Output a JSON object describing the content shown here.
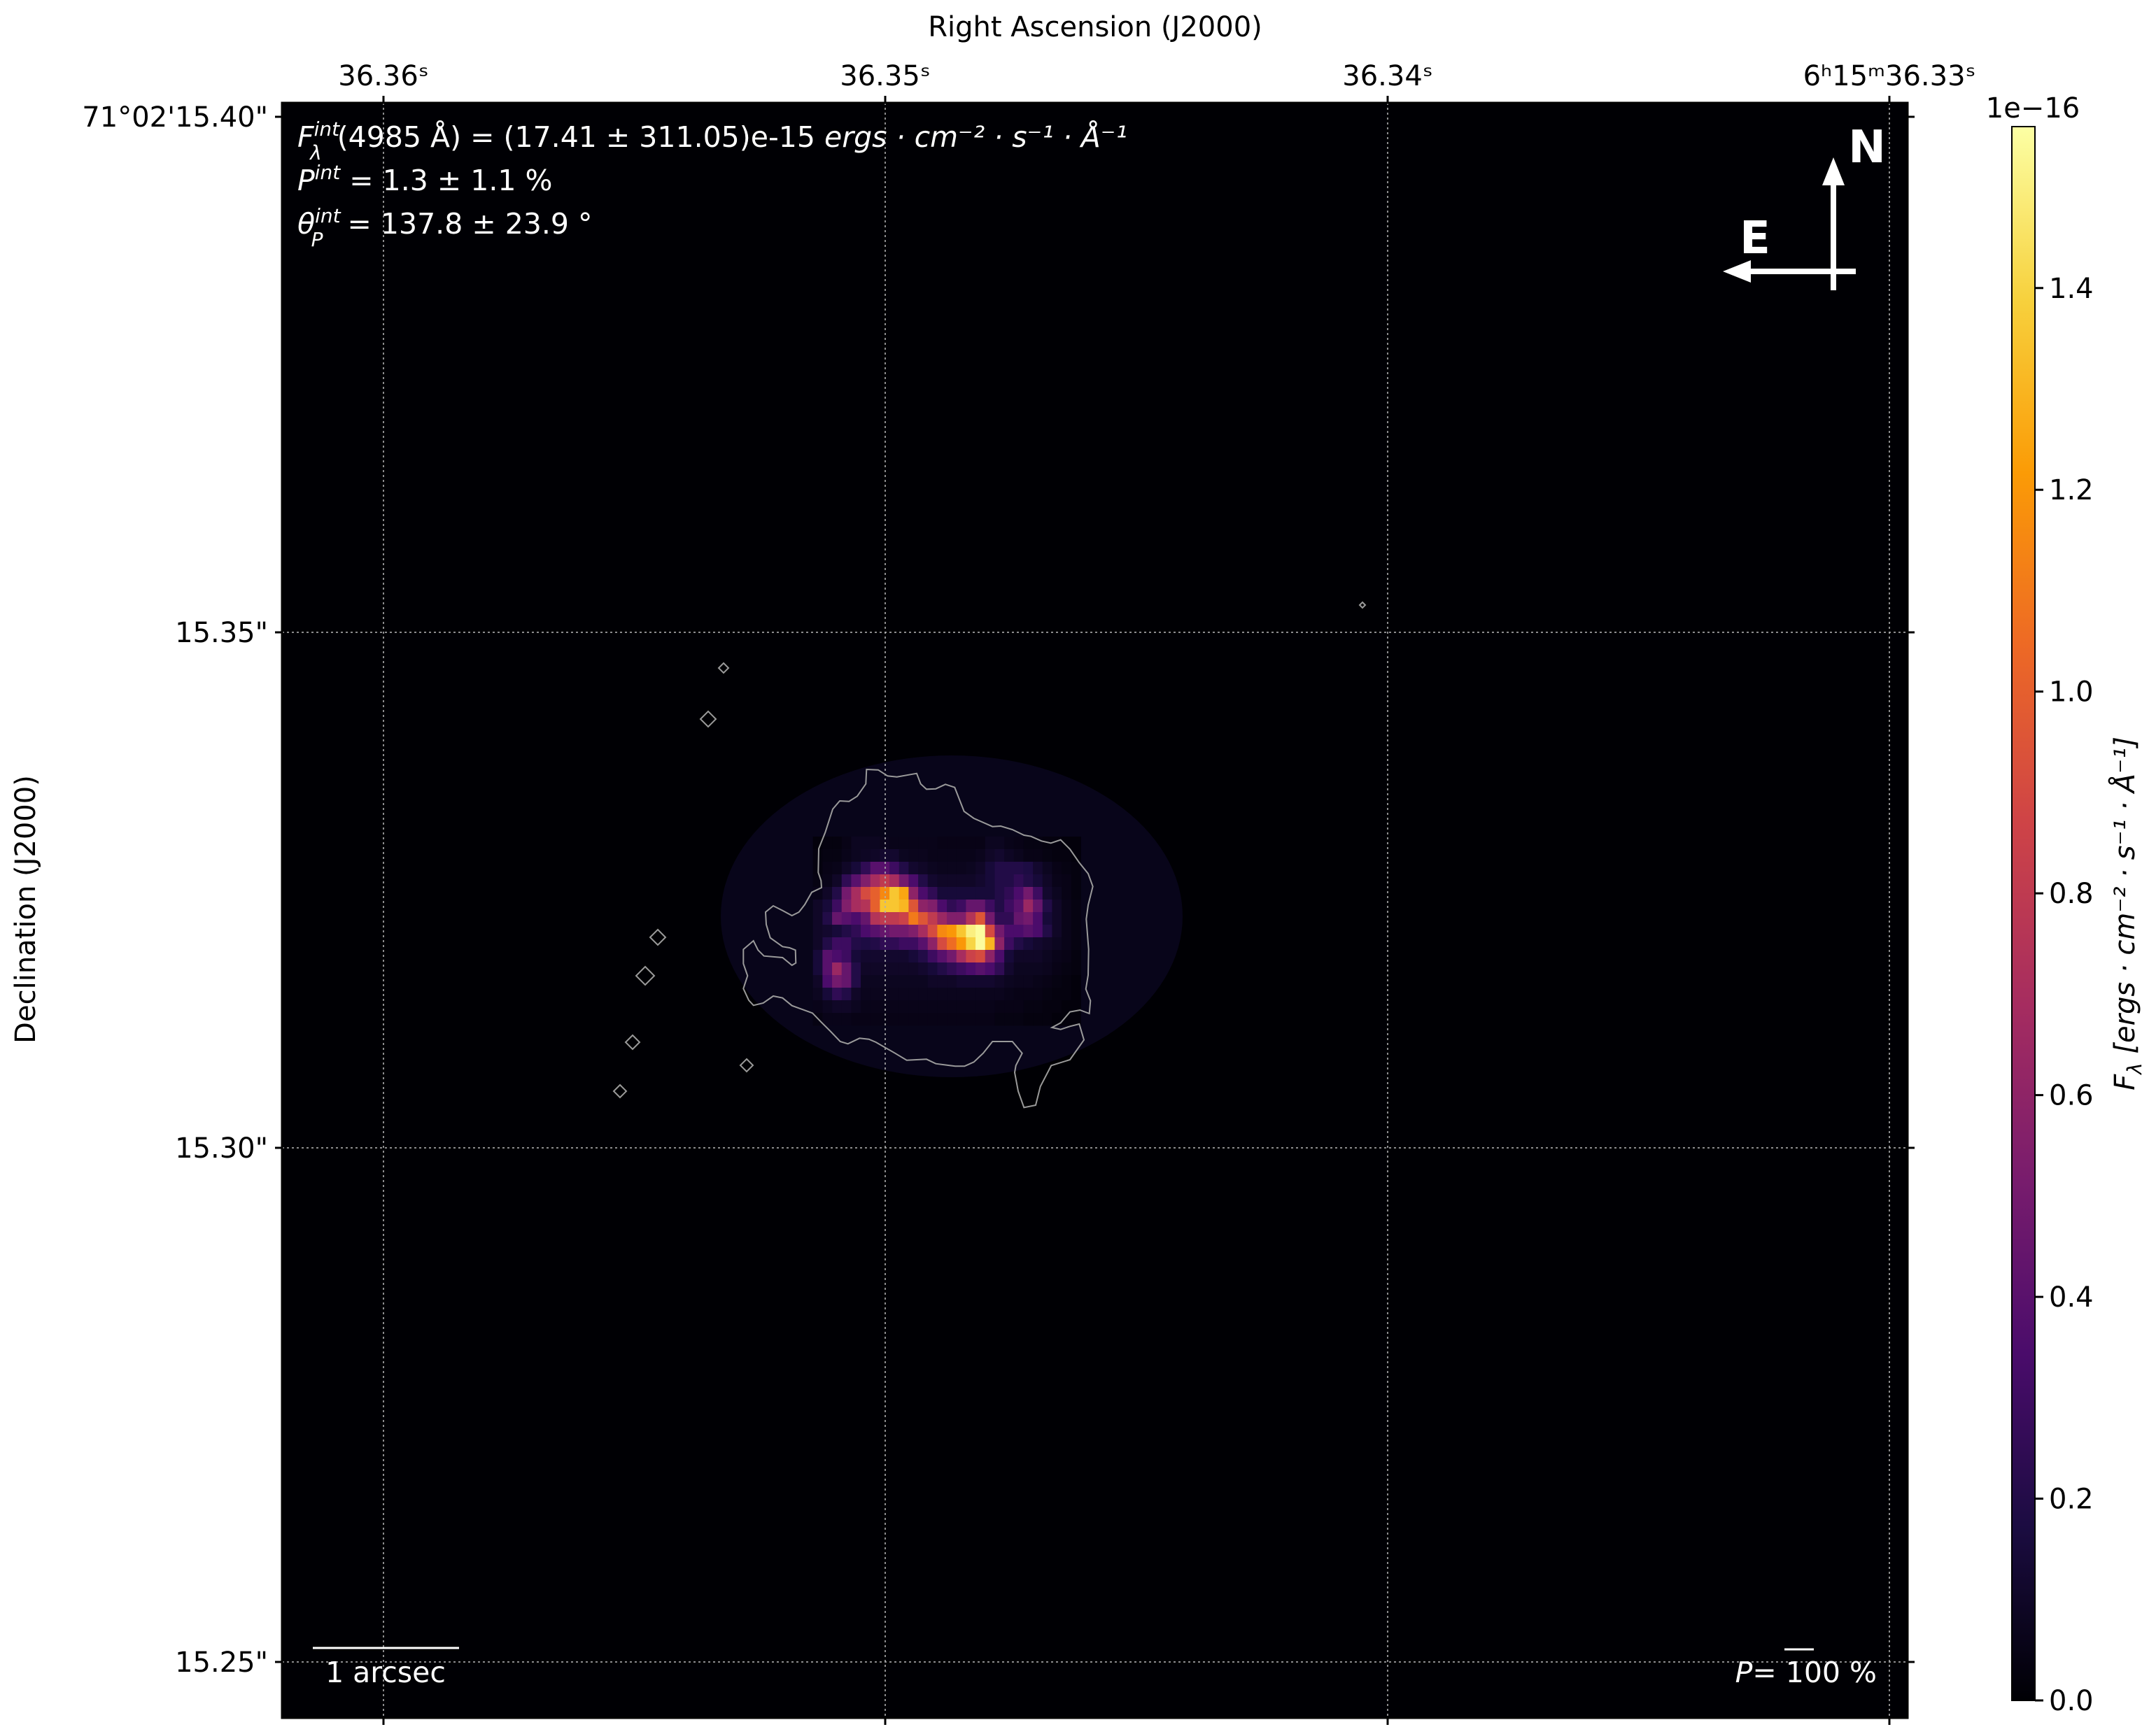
{
  "chart_data": {
    "type": "heatmap",
    "title": "",
    "xlabel": "Right Ascension (J2000)",
    "ylabel": "Declination (J2000)",
    "x_tick_labels": [
      "36.36ˢ",
      "36.35ˢ",
      "36.34ˢ",
      "6ʰ15ᵐ36.33ˢ"
    ],
    "y_tick_labels": [
      "71°02'15.40\"",
      "15.35\"",
      "15.30\"",
      "15.25\""
    ],
    "grid": true,
    "colormap": "inferno",
    "colorbar": {
      "label_main": "F",
      "label_sub": "λ",
      "label_units": " [ergs · cm⁻² · s⁻¹ · Å⁻¹]",
      "offset_text": "1e−16",
      "ticks": [
        "0.0",
        "0.2",
        "0.4",
        "0.6",
        "0.8",
        "1.0",
        "1.2",
        "1.4"
      ],
      "vmin": 0,
      "vmax": 1.56
    },
    "values": [
      [
        0.02,
        0.03,
        0.03,
        0.05,
        0.08,
        0.08,
        0.08,
        0.07,
        0.06,
        0.06,
        0.06,
        0.06,
        0.06,
        0.05,
        0.05,
        0.05,
        0.05,
        0.05,
        0.08,
        0.08,
        0.06,
        0.05,
        0.04,
        0.04,
        0.03,
        0.03,
        0.02,
        0.02
      ],
      [
        0.03,
        0.04,
        0.04,
        0.06,
        0.08,
        0.09,
        0.1,
        0.12,
        0.12,
        0.08,
        0.07,
        0.07,
        0.06,
        0.06,
        0.06,
        0.06,
        0.06,
        0.07,
        0.1,
        0.12,
        0.09,
        0.07,
        0.05,
        0.05,
        0.04,
        0.03,
        0.03,
        0.02
      ],
      [
        0.03,
        0.05,
        0.06,
        0.1,
        0.15,
        0.25,
        0.4,
        0.4,
        0.3,
        0.2,
        0.12,
        0.1,
        0.08,
        0.07,
        0.07,
        0.07,
        0.08,
        0.1,
        0.15,
        0.2,
        0.2,
        0.2,
        0.18,
        0.12,
        0.08,
        0.05,
        0.04,
        0.03
      ],
      [
        0.04,
        0.06,
        0.1,
        0.25,
        0.4,
        0.55,
        0.7,
        0.8,
        0.7,
        0.5,
        0.35,
        0.2,
        0.12,
        0.1,
        0.1,
        0.1,
        0.1,
        0.12,
        0.15,
        0.2,
        0.2,
        0.25,
        0.2,
        0.15,
        0.1,
        0.06,
        0.05,
        0.03
      ],
      [
        0.06,
        0.1,
        0.2,
        0.5,
        0.7,
        0.9,
        1.0,
        1.15,
        1.35,
        1.25,
        0.6,
        0.35,
        0.25,
        0.15,
        0.15,
        0.15,
        0.15,
        0.15,
        0.15,
        0.2,
        0.25,
        0.35,
        0.5,
        0.3,
        0.12,
        0.08,
        0.05,
        0.03
      ],
      [
        0.1,
        0.15,
        0.3,
        0.55,
        0.7,
        0.75,
        1.0,
        1.35,
        1.35,
        1.3,
        0.95,
        0.6,
        0.55,
        0.35,
        0.25,
        0.3,
        0.45,
        0.45,
        0.3,
        0.2,
        0.3,
        0.4,
        0.65,
        0.45,
        0.2,
        0.1,
        0.06,
        0.04
      ],
      [
        0.1,
        0.2,
        0.45,
        0.4,
        0.35,
        0.45,
        0.75,
        0.8,
        0.8,
        0.85,
        1.1,
        0.95,
        0.8,
        0.65,
        0.55,
        0.55,
        0.75,
        0.95,
        0.5,
        0.25,
        0.25,
        0.45,
        0.5,
        0.35,
        0.15,
        0.1,
        0.06,
        0.04
      ],
      [
        0.1,
        0.12,
        0.15,
        0.2,
        0.25,
        0.35,
        0.4,
        0.45,
        0.5,
        0.5,
        0.55,
        0.7,
        0.9,
        1.15,
        1.2,
        1.35,
        1.5,
        1.55,
        0.9,
        0.5,
        0.35,
        0.35,
        0.4,
        0.35,
        0.2,
        0.1,
        0.06,
        0.04
      ],
      [
        0.1,
        0.2,
        0.3,
        0.3,
        0.2,
        0.18,
        0.2,
        0.25,
        0.25,
        0.3,
        0.3,
        0.4,
        0.6,
        0.9,
        1.05,
        1.2,
        1.4,
        1.55,
        1.3,
        0.6,
        0.3,
        0.2,
        0.15,
        0.12,
        0.1,
        0.08,
        0.06,
        0.04
      ],
      [
        0.15,
        0.4,
        0.35,
        0.3,
        0.15,
        0.12,
        0.12,
        0.12,
        0.12,
        0.12,
        0.15,
        0.2,
        0.3,
        0.4,
        0.5,
        0.7,
        0.85,
        0.9,
        0.6,
        0.35,
        0.15,
        0.1,
        0.1,
        0.1,
        0.08,
        0.06,
        0.05,
        0.03
      ],
      [
        0.15,
        0.4,
        0.65,
        0.45,
        0.2,
        0.1,
        0.1,
        0.1,
        0.1,
        0.1,
        0.1,
        0.12,
        0.15,
        0.2,
        0.25,
        0.3,
        0.35,
        0.4,
        0.35,
        0.25,
        0.12,
        0.08,
        0.08,
        0.08,
        0.07,
        0.05,
        0.04,
        0.03
      ],
      [
        0.1,
        0.35,
        0.5,
        0.45,
        0.2,
        0.08,
        0.08,
        0.08,
        0.08,
        0.08,
        0.08,
        0.08,
        0.1,
        0.1,
        0.1,
        0.12,
        0.12,
        0.12,
        0.12,
        0.1,
        0.08,
        0.07,
        0.07,
        0.06,
        0.05,
        0.04,
        0.03,
        0.02
      ],
      [
        0.08,
        0.15,
        0.25,
        0.2,
        0.1,
        0.07,
        0.07,
        0.07,
        0.07,
        0.07,
        0.07,
        0.07,
        0.07,
        0.07,
        0.07,
        0.07,
        0.07,
        0.07,
        0.07,
        0.07,
        0.06,
        0.05,
        0.05,
        0.05,
        0.04,
        0.03,
        0.03,
        0.02
      ],
      [
        0.06,
        0.08,
        0.1,
        0.1,
        0.08,
        0.06,
        0.06,
        0.06,
        0.06,
        0.06,
        0.06,
        0.06,
        0.06,
        0.06,
        0.06,
        0.06,
        0.06,
        0.06,
        0.06,
        0.05,
        0.05,
        0.05,
        0.04,
        0.04,
        0.03,
        0.03,
        0.02,
        0.02
      ],
      [
        0.04,
        0.06,
        0.06,
        0.06,
        0.05,
        0.05,
        0.05,
        0.05,
        0.05,
        0.05,
        0.05,
        0.05,
        0.05,
        0.05,
        0.05,
        0.05,
        0.05,
        0.05,
        0.05,
        0.04,
        0.04,
        0.04,
        0.03,
        0.03,
        0.03,
        0.02,
        0.02,
        0.02
      ]
    ],
    "annotations": {
      "flux": {
        "sym": "F",
        "sub": "λ",
        "sup": "int",
        "text": "(4985 Å) = (17.41 ± 311.05)e-15 ",
        "units": "ergs · cm⁻² · s⁻¹ · Å⁻¹"
      },
      "pol": {
        "sym": "P",
        "sup": "int",
        "text": " = 1.3 ± 1.1 %"
      },
      "angle": {
        "sym": "θ",
        "sub": "P",
        "sup": "int",
        "text": " = 137.8 ± 23.9 °"
      },
      "north_label": "N",
      "east_label": "E",
      "scale_bar_label": "1 arcsec",
      "vector_scale_sym": "P",
      "vector_scale_text": "= 100 %"
    },
    "colors": {
      "contour": "#9a9a9a",
      "background": "#000004",
      "text": "#ffffff"
    }
  }
}
